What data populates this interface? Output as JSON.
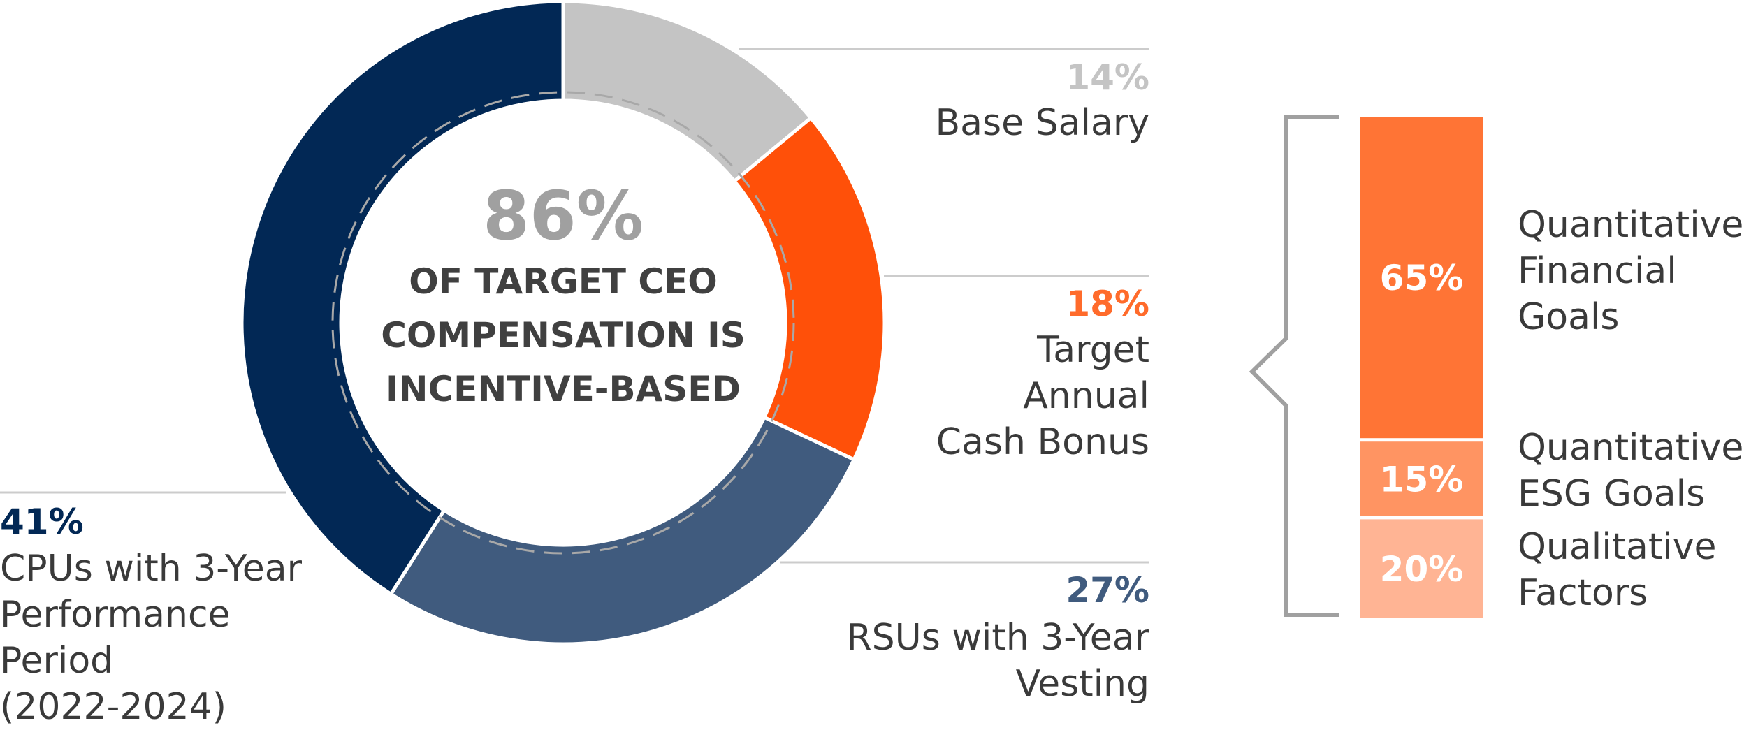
{
  "chart_data": [
    {
      "type": "pie",
      "center_value": "86%",
      "center_text": [
        "OF TARGET CEO",
        "COMPENSATION IS",
        "INCENTIVE-BASED"
      ],
      "slices": [
        {
          "pct": "14%",
          "value": 14,
          "label_lines": [
            "Base Salary"
          ],
          "color": "#c4c4c4",
          "label_color": "#c4c4c4"
        },
        {
          "pct": "18%",
          "value": 18,
          "label_lines": [
            "Target",
            "Annual",
            "Cash Bonus"
          ],
          "color": "#ff5009",
          "label_color": "#ff6b2b"
        },
        {
          "pct": "27%",
          "value": 27,
          "label_lines": [
            "RSUs with 3-Year",
            "Vesting"
          ],
          "color": "#405b7e",
          "label_color": "#405b7e"
        },
        {
          "pct": "41%",
          "value": 41,
          "label_lines": [
            "CPUs with 3-Year",
            "Performance",
            "Period",
            "(2022-2024)"
          ],
          "color": "#022855",
          "label_color": "#022855"
        }
      ]
    },
    {
      "type": "bar",
      "stacked": true,
      "segments": [
        {
          "pct": "65%",
          "value": 65,
          "label_lines": [
            "Quantitative",
            "Financial",
            "Goals"
          ],
          "color": "#ff7435"
        },
        {
          "pct": "15%",
          "value": 15,
          "label_lines": [
            "Quantitative",
            "ESG Goals"
          ],
          "color": "#ff9462"
        },
        {
          "pct": "20%",
          "value": 20,
          "label_lines": [
            "Qualitative",
            "Factors"
          ],
          "color": "#ffb494"
        }
      ]
    }
  ],
  "colors": {
    "label_text": "#3a3a3a",
    "center_value": "#a0a0a0",
    "center_text": "#404040",
    "leader_line": "#cccccc",
    "bracket": "#a0a0a0",
    "dashed_ring": "#a8a8a8"
  }
}
